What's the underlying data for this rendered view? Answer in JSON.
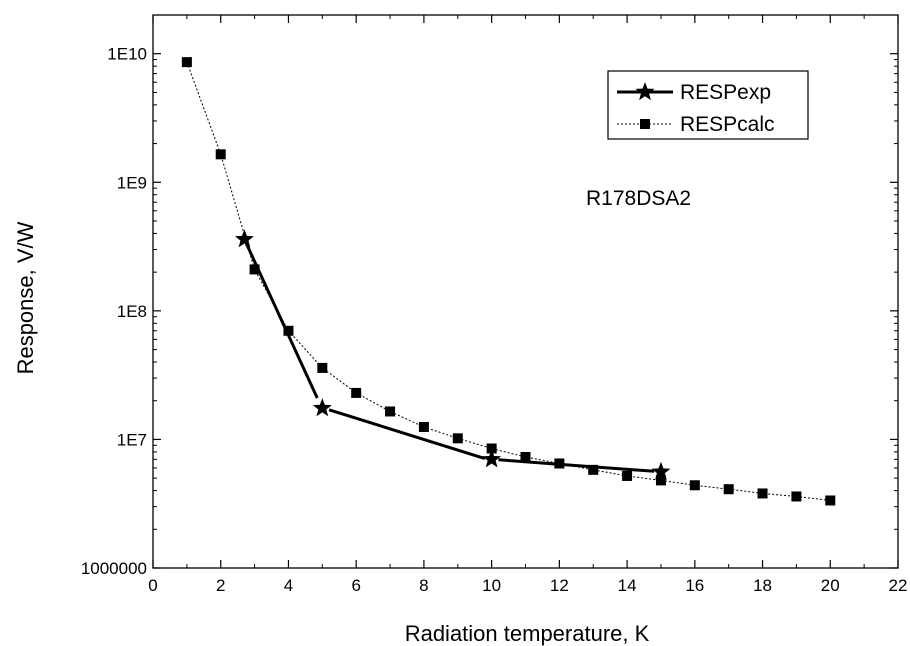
{
  "chart_data": {
    "type": "line",
    "xlabel": "Radiation temperature, K",
    "ylabel": "Response, V/W",
    "xlim": [
      0,
      22
    ],
    "ylim": [
      1000000,
      20000000000
    ],
    "yscale": "log",
    "x_ticks": [
      0,
      2,
      4,
      6,
      8,
      10,
      12,
      14,
      16,
      18,
      20,
      22
    ],
    "x_tick_labels": [
      "0",
      "2",
      "4",
      "6",
      "8",
      "10",
      "12",
      "14",
      "16",
      "18",
      "20",
      "22"
    ],
    "y_ticks": [
      1000000,
      10000000,
      100000000,
      1000000000,
      10000000000
    ],
    "y_tick_labels": [
      "1000000",
      "1E7",
      "1E8",
      "1E9",
      "1E10"
    ],
    "grid": false,
    "legend_position": "top-right",
    "annotation": "R178DSA2",
    "series": [
      {
        "name": "RESPexp",
        "marker": "star",
        "line": "solid-thick",
        "color": "#000000",
        "x": [
          2.7,
          5,
          10,
          15
        ],
        "y": [
          360000000,
          17500000,
          7000000,
          5600000
        ],
        "segments": [
          {
            "x": [
              2.7,
              4.85
            ],
            "y": [
              360000000,
              21000000
            ]
          },
          {
            "x": [
              5.2,
              9.8
            ],
            "y": [
              17000000,
              7100000
            ]
          },
          {
            "x": [
              10.2,
              14.8
            ],
            "y": [
              6950000,
              5650000
            ]
          }
        ]
      },
      {
        "name": "RESPcalc",
        "marker": "square",
        "line": "dotted-thin",
        "color": "#000000",
        "x": [
          1,
          2,
          3,
          4,
          5,
          6,
          7,
          8,
          9,
          10,
          11,
          12,
          13,
          14,
          15,
          16,
          17,
          18,
          19,
          20
        ],
        "y": [
          8600000000,
          1650000000,
          210000000,
          70000000,
          36000000,
          23000000,
          16500000,
          12500000,
          10200000,
          8500000,
          7300000,
          6500000,
          5800000,
          5200000,
          4800000,
          4400000,
          4100000,
          3800000,
          3600000,
          3350000
        ]
      }
    ]
  }
}
